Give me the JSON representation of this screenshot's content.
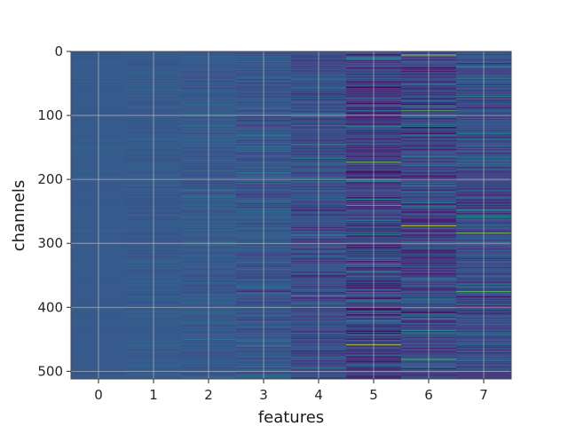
{
  "chart_data": {
    "type": "heatmap",
    "title": "",
    "xlabel": "features",
    "ylabel": "channels",
    "x_categories": [
      "0",
      "1",
      "2",
      "3",
      "4",
      "5",
      "6",
      "7"
    ],
    "y_ticks": [
      0,
      100,
      200,
      300,
      400,
      500
    ],
    "ylim": [
      512,
      0
    ],
    "n_rows": 512,
    "n_cols": 8,
    "colormap": "viridis",
    "grid": true,
    "feature_variability": [
      0.05,
      0.09,
      0.14,
      0.26,
      0.3,
      0.46,
      0.4,
      0.34
    ],
    "feature_baseline": [
      0.36,
      0.36,
      0.36,
      0.35,
      0.3,
      0.25,
      0.28,
      0.3
    ],
    "highlights": [
      {
        "feature": 5,
        "channel": 172,
        "value": 0.92
      },
      {
        "feature": 5,
        "channel": 240,
        "value": 0.85
      },
      {
        "feature": 5,
        "channel": 458,
        "value": 0.95
      },
      {
        "feature": 5,
        "channel": 332,
        "value": 0.78
      },
      {
        "feature": 6,
        "channel": 5,
        "value": 0.97
      },
      {
        "feature": 6,
        "channel": 92,
        "value": 0.85
      },
      {
        "feature": 6,
        "channel": 272,
        "value": 0.98
      },
      {
        "feature": 6,
        "channel": 480,
        "value": 0.8
      },
      {
        "feature": 6,
        "channel": 418,
        "value": 0.7
      },
      {
        "feature": 7,
        "channel": 283,
        "value": 0.9
      },
      {
        "feature": 7,
        "channel": 375,
        "value": 0.85
      },
      {
        "feature": 7,
        "channel": 70,
        "value": 0.75
      },
      {
        "feature": 4,
        "channel": 382,
        "value": 0.8
      },
      {
        "feature": 3,
        "channel": 460,
        "value": 0.72
      }
    ],
    "colors": {
      "background": "#3b528b",
      "grid": "#c8c8c8",
      "axis": "#262626"
    }
  }
}
